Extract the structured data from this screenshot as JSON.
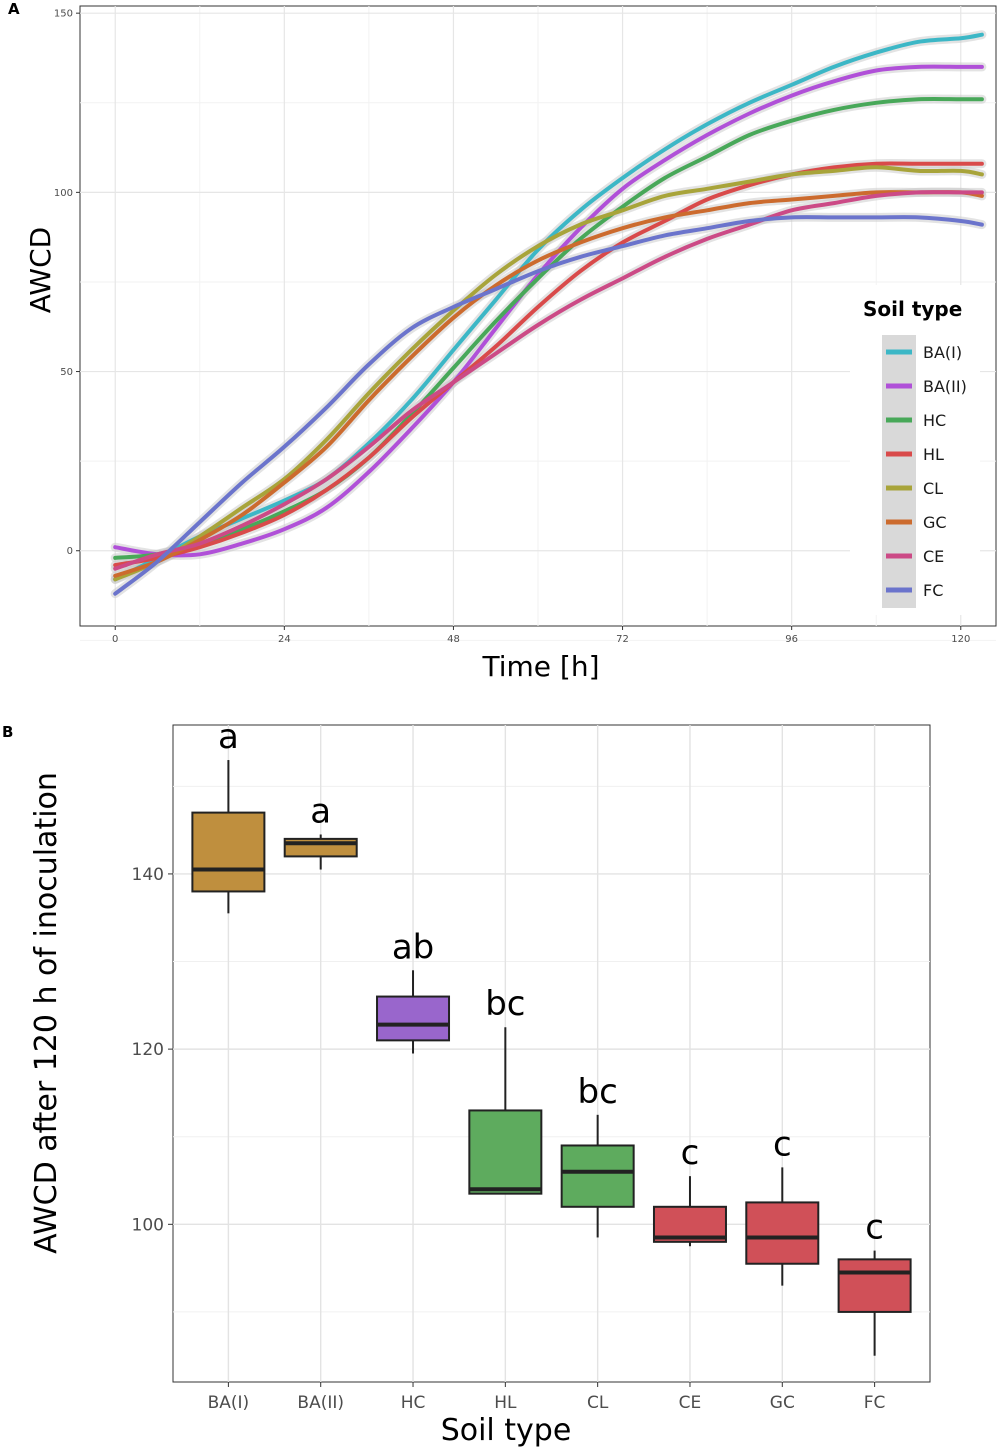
{
  "chart_data": [
    {
      "panel_label": "A",
      "type": "line",
      "title": "",
      "xlabel": "Time [h]",
      "ylabel": "AWCD",
      "xlim": [
        -5,
        125
      ],
      "ylim": [
        -21,
        152
      ],
      "xticks": [
        0,
        24,
        48,
        72,
        96,
        120
      ],
      "yticks": [
        0,
        50,
        100,
        150
      ],
      "grid": true,
      "legend": {
        "title": "Soil type",
        "position": "right-inside"
      },
      "x": [
        0,
        6,
        12,
        18,
        24,
        30,
        36,
        42,
        48,
        54,
        60,
        66,
        72,
        78,
        84,
        90,
        96,
        102,
        108,
        114,
        120,
        123
      ],
      "series": [
        {
          "name": "BA(I)",
          "color": "#3cb7c6",
          "values": [
            -8,
            -2,
            4,
            9,
            14,
            20,
            30,
            42,
            56,
            70,
            84,
            95,
            104,
            112,
            119,
            125,
            130,
            135,
            139,
            142,
            143,
            144
          ]
        },
        {
          "name": "BA(II)",
          "color": "#b050d8",
          "values": [
            1,
            -1,
            -1,
            2,
            6,
            12,
            22,
            34,
            47,
            62,
            77,
            90,
            101,
            109,
            116,
            122,
            127,
            131,
            134,
            135,
            135,
            135
          ]
        },
        {
          "name": "HC",
          "color": "#48a859",
          "values": [
            -2,
            -1,
            2,
            6,
            11,
            17,
            26,
            38,
            51,
            64,
            76,
            87,
            96,
            104,
            110,
            116,
            120,
            123,
            125,
            126,
            126,
            126
          ]
        },
        {
          "name": "HL",
          "color": "#d94a4a",
          "values": [
            -4,
            -2,
            1,
            5,
            10,
            17,
            26,
            37,
            47,
            57,
            68,
            78,
            86,
            92,
            98,
            102,
            105,
            107,
            108,
            108,
            108,
            108
          ]
        },
        {
          "name": "CL",
          "color": "#a8a43a",
          "values": [
            -8,
            -3,
            4,
            12,
            20,
            31,
            44,
            56,
            67,
            77,
            85,
            91,
            95,
            99,
            101,
            103,
            105,
            106,
            107,
            106,
            106,
            105
          ]
        },
        {
          "name": "GC",
          "color": "#cc6b2e",
          "values": [
            -7,
            -3,
            3,
            10,
            19,
            29,
            42,
            54,
            65,
            74,
            81,
            86,
            90,
            93,
            95,
            97,
            98,
            99,
            100,
            100,
            100,
            99
          ]
        },
        {
          "name": "CE",
          "color": "#cc4a86",
          "values": [
            -5,
            -1,
            2,
            7,
            13,
            20,
            29,
            39,
            47,
            55,
            63,
            70,
            76,
            82,
            87,
            91,
            95,
            97,
            99,
            100,
            100,
            100
          ]
        },
        {
          "name": "FC",
          "color": "#6b74cc",
          "values": [
            -12,
            -3,
            8,
            19,
            29,
            40,
            52,
            62,
            68,
            73,
            78,
            82,
            85,
            88,
            90,
            92,
            93,
            93,
            93,
            93,
            92,
            91
          ]
        }
      ]
    },
    {
      "panel_label": "B",
      "type": "box",
      "title": "",
      "xlabel": "Soil type",
      "ylabel": "AWCD after 120 h of inoculation",
      "ylim": [
        82,
        157
      ],
      "yticks": [
        100,
        120,
        140
      ],
      "grid": true,
      "categories": [
        "BA(I)",
        "BA(II)",
        "HC",
        "HL",
        "CL",
        "CE",
        "GC",
        "FC"
      ],
      "boxes": [
        {
          "min": 135.5,
          "q1": 138.0,
          "median": 140.5,
          "q3": 147.0,
          "max": 153.0,
          "label": "a",
          "color": "#bf8f3e"
        },
        {
          "min": 140.5,
          "q1": 142.0,
          "median": 143.5,
          "q3": 144.0,
          "max": 144.5,
          "label": "a",
          "color": "#bf8f3e"
        },
        {
          "min": 119.5,
          "q1": 121.0,
          "median": 122.8,
          "q3": 126.0,
          "max": 129.0,
          "label": "ab",
          "color": "#9966cc"
        },
        {
          "min": 103.5,
          "q1": 103.5,
          "median": 104.0,
          "q3": 113.0,
          "max": 122.5,
          "label": "bc",
          "color": "#5eab5e"
        },
        {
          "min": 98.5,
          "q1": 102.0,
          "median": 106.0,
          "q3": 109.0,
          "max": 112.5,
          "label": "bc",
          "color": "#5eab5e"
        },
        {
          "min": 97.5,
          "q1": 98.0,
          "median": 98.5,
          "q3": 102.0,
          "max": 105.5,
          "label": "c",
          "color": "#d05058"
        },
        {
          "min": 93.0,
          "q1": 95.5,
          "median": 98.5,
          "q3": 102.5,
          "max": 106.5,
          "label": "c",
          "color": "#d05058"
        },
        {
          "min": 85.0,
          "q1": 90.0,
          "median": 94.5,
          "q3": 96.0,
          "max": 97.0,
          "label": "c",
          "color": "#d05058"
        }
      ]
    }
  ]
}
